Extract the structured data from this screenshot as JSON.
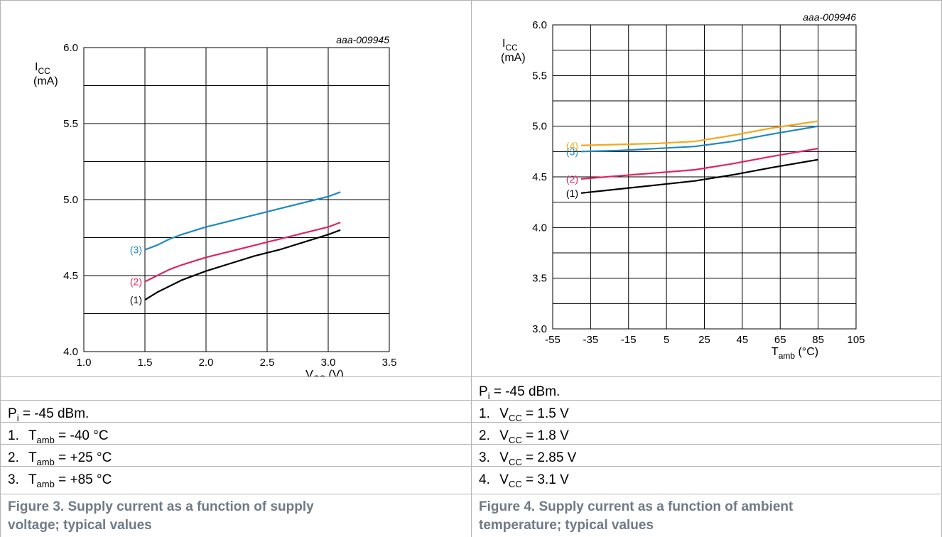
{
  "chart_data": [
    {
      "type": "line",
      "code": "aaa-009945",
      "ylabel": "I",
      "ylabel_sub": "CC",
      "ylabel_unit": "(mA)",
      "xlabel": "V",
      "xlabel_sub": "CC",
      "xlabel_unit": "(V)",
      "xlim": [
        1.0,
        3.5
      ],
      "ylim": [
        4.0,
        6.0
      ],
      "xticks": [
        "1.0",
        "1.5",
        "2.0",
        "2.5",
        "3.0",
        "3.5"
      ],
      "yticks": [
        "4.0",
        "4.5",
        "5.0",
        "5.5",
        "6.0"
      ],
      "grid": true,
      "series": [
        {
          "name": "(1)",
          "color": "#000000",
          "x": [
            1.5,
            1.6,
            1.7,
            1.8,
            2.0,
            2.2,
            2.4,
            2.6,
            2.8,
            3.0,
            3.1
          ],
          "y": [
            4.34,
            4.39,
            4.43,
            4.47,
            4.53,
            4.58,
            4.63,
            4.67,
            4.72,
            4.77,
            4.8
          ]
        },
        {
          "name": "(2)",
          "color": "#e0245e",
          "x": [
            1.5,
            1.6,
            1.7,
            1.8,
            2.0,
            2.2,
            2.4,
            2.6,
            2.8,
            3.0,
            3.1
          ],
          "y": [
            4.46,
            4.5,
            4.54,
            4.57,
            4.62,
            4.66,
            4.7,
            4.74,
            4.78,
            4.82,
            4.85
          ]
        },
        {
          "name": "(3)",
          "color": "#1f88c0",
          "x": [
            1.5,
            1.6,
            1.7,
            1.8,
            2.0,
            2.2,
            2.4,
            2.6,
            2.8,
            3.0,
            3.1
          ],
          "y": [
            4.67,
            4.7,
            4.74,
            4.77,
            4.82,
            4.86,
            4.9,
            4.94,
            4.98,
            5.02,
            5.05
          ]
        }
      ]
    },
    {
      "type": "line",
      "code": "aaa-009946",
      "ylabel": "I",
      "ylabel_sub": "CC",
      "ylabel_unit": "(mA)",
      "xlabel": "T",
      "xlabel_sub": "amb",
      "xlabel_unit": "(°C)",
      "xlim": [
        -55,
        105
      ],
      "ylim": [
        3.0,
        6.0
      ],
      "xticks": [
        "-55",
        "-35",
        "-15",
        "5",
        "25",
        "45",
        "65",
        "85",
        "105"
      ],
      "yticks": [
        "3.0",
        "3.5",
        "4.0",
        "4.5",
        "5.0",
        "5.5",
        "6.0"
      ],
      "grid": true,
      "series": [
        {
          "name": "(1)",
          "color": "#000000",
          "x": [
            -40,
            -20,
            0,
            20,
            40,
            60,
            85
          ],
          "y": [
            4.34,
            4.38,
            4.42,
            4.46,
            4.52,
            4.59,
            4.67
          ]
        },
        {
          "name": "(2)",
          "color": "#e0245e",
          "x": [
            -40,
            -20,
            0,
            20,
            40,
            60,
            85
          ],
          "y": [
            4.48,
            4.51,
            4.54,
            4.57,
            4.63,
            4.7,
            4.78
          ]
        },
        {
          "name": "(3)",
          "color": "#1f88c0",
          "x": [
            -40,
            -20,
            0,
            20,
            40,
            60,
            85
          ],
          "y": [
            4.75,
            4.76,
            4.78,
            4.8,
            4.85,
            4.92,
            5.0
          ]
        },
        {
          "name": "(4)",
          "color": "#f2a81d",
          "x": [
            -40,
            -20,
            0,
            20,
            40,
            60,
            85
          ],
          "y": [
            4.81,
            4.82,
            4.83,
            4.85,
            4.91,
            4.98,
            5.05
          ]
        }
      ]
    }
  ],
  "left_caption": {
    "pi_label": "P",
    "pi_sub": "i",
    "pi_value": " = -45 dBm.",
    "items": [
      {
        "num": "1.",
        "var": "T",
        "sub": "amb",
        "value": " = -40 °C"
      },
      {
        "num": "2.",
        "var": "T",
        "sub": "amb",
        "value": " = +25 °C"
      },
      {
        "num": "3.",
        "var": "T",
        "sub": "amb",
        "value": " = +85 °C"
      }
    ],
    "figure_line1": "Figure 3.  Supply current as a function of supply",
    "figure_line2": "voltage; typical values"
  },
  "right_caption": {
    "pi_label": "P",
    "pi_sub": "i",
    "pi_value": " = -45 dBm.",
    "items": [
      {
        "num": "1.",
        "var": "V",
        "sub": "CC",
        "value": " = 1.5 V"
      },
      {
        "num": "2.",
        "var": "V",
        "sub": "CC",
        "value": " = 1.8 V"
      },
      {
        "num": "3.",
        "var": "V",
        "sub": "CC",
        "value": " = 2.85 V"
      },
      {
        "num": "4.",
        "var": "V",
        "sub": "CC",
        "value": " = 3.1 V"
      }
    ],
    "figure_line1": "Figure 4.  Supply current as a function of ambient",
    "figure_line2": "temperature; typical values"
  }
}
